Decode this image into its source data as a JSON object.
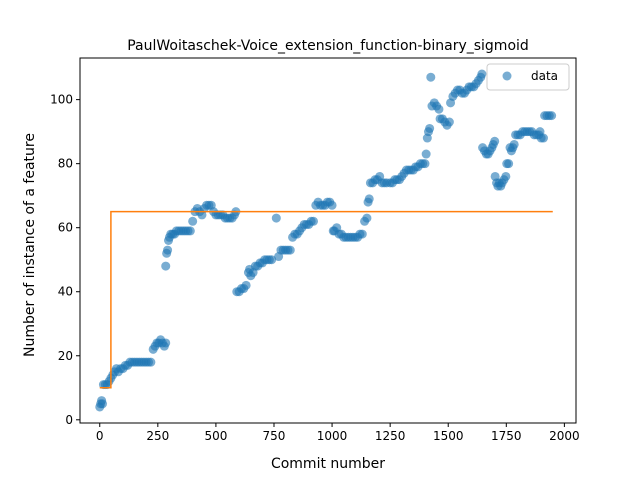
{
  "chart_data": {
    "type": "scatter",
    "title": "PaulWoitaschek-Voice_extension_function-binary_sigmoid",
    "xlabel": "Commit number",
    "ylabel": "Number of instance of a feature",
    "xlim": [
      -85,
      2050
    ],
    "ylim": [
      -1,
      113
    ],
    "xticks": [
      0,
      250,
      500,
      750,
      1000,
      1250,
      1500,
      1750,
      2000
    ],
    "yticks": [
      0,
      20,
      40,
      60,
      80,
      100
    ],
    "grid": false,
    "legend_position": "top-right",
    "colors": {
      "data": "#1f77b4",
      "fit": "#ff7f0e"
    },
    "series": [
      {
        "name": "data",
        "kind": "scatter",
        "points": [
          [
            0,
            4
          ],
          [
            4,
            5
          ],
          [
            8,
            6
          ],
          [
            12,
            5
          ],
          [
            16,
            11
          ],
          [
            24,
            11
          ],
          [
            32,
            11
          ],
          [
            40,
            12
          ],
          [
            48,
            13
          ],
          [
            56,
            14
          ],
          [
            64,
            15
          ],
          [
            72,
            16
          ],
          [
            80,
            15
          ],
          [
            90,
            16
          ],
          [
            100,
            16
          ],
          [
            110,
            17
          ],
          [
            120,
            17
          ],
          [
            130,
            18
          ],
          [
            140,
            18
          ],
          [
            150,
            18
          ],
          [
            160,
            18
          ],
          [
            170,
            18
          ],
          [
            180,
            18
          ],
          [
            190,
            18
          ],
          [
            200,
            18
          ],
          [
            210,
            18
          ],
          [
            220,
            18
          ],
          [
            230,
            22
          ],
          [
            238,
            23
          ],
          [
            246,
            24
          ],
          [
            254,
            24
          ],
          [
            262,
            25
          ],
          [
            270,
            24
          ],
          [
            278,
            23
          ],
          [
            284,
            24
          ],
          [
            284,
            48
          ],
          [
            288,
            52
          ],
          [
            292,
            53
          ],
          [
            296,
            56
          ],
          [
            300,
            57
          ],
          [
            306,
            58
          ],
          [
            314,
            58
          ],
          [
            322,
            58
          ],
          [
            330,
            59
          ],
          [
            340,
            59
          ],
          [
            350,
            59
          ],
          [
            360,
            59
          ],
          [
            370,
            59
          ],
          [
            380,
            59
          ],
          [
            390,
            59
          ],
          [
            400,
            62
          ],
          [
            410,
            65
          ],
          [
            420,
            66
          ],
          [
            430,
            65
          ],
          [
            440,
            64
          ],
          [
            450,
            66
          ],
          [
            460,
            67
          ],
          [
            470,
            67
          ],
          [
            480,
            67
          ],
          [
            490,
            65
          ],
          [
            500,
            64
          ],
          [
            510,
            64
          ],
          [
            520,
            64
          ],
          [
            530,
            64
          ],
          [
            540,
            63
          ],
          [
            550,
            63
          ],
          [
            560,
            63
          ],
          [
            570,
            63
          ],
          [
            580,
            64
          ],
          [
            586,
            65
          ],
          [
            590,
            40
          ],
          [
            600,
            40
          ],
          [
            610,
            41
          ],
          [
            620,
            41
          ],
          [
            630,
            42
          ],
          [
            640,
            46
          ],
          [
            645,
            47
          ],
          [
            650,
            45
          ],
          [
            660,
            46
          ],
          [
            670,
            48
          ],
          [
            680,
            48
          ],
          [
            690,
            49
          ],
          [
            700,
            49
          ],
          [
            710,
            50
          ],
          [
            720,
            50
          ],
          [
            730,
            50
          ],
          [
            740,
            50
          ],
          [
            760,
            63
          ],
          [
            770,
            51
          ],
          [
            780,
            53
          ],
          [
            790,
            53
          ],
          [
            800,
            53
          ],
          [
            810,
            53
          ],
          [
            820,
            53
          ],
          [
            830,
            57
          ],
          [
            840,
            58
          ],
          [
            850,
            58
          ],
          [
            860,
            59
          ],
          [
            870,
            60
          ],
          [
            880,
            61
          ],
          [
            890,
            61
          ],
          [
            900,
            61
          ],
          [
            910,
            62
          ],
          [
            920,
            62
          ],
          [
            930,
            67
          ],
          [
            940,
            68
          ],
          [
            950,
            67
          ],
          [
            960,
            67
          ],
          [
            970,
            67
          ],
          [
            980,
            68
          ],
          [
            990,
            68
          ],
          [
            1000,
            67
          ],
          [
            1005,
            59
          ],
          [
            1010,
            59
          ],
          [
            1020,
            60
          ],
          [
            1030,
            58
          ],
          [
            1040,
            58
          ],
          [
            1050,
            57
          ],
          [
            1060,
            57
          ],
          [
            1070,
            57
          ],
          [
            1080,
            57
          ],
          [
            1090,
            57
          ],
          [
            1100,
            57
          ],
          [
            1110,
            57
          ],
          [
            1120,
            58
          ],
          [
            1130,
            58
          ],
          [
            1140,
            62
          ],
          [
            1150,
            63
          ],
          [
            1155,
            68
          ],
          [
            1160,
            69
          ],
          [
            1165,
            74
          ],
          [
            1175,
            74
          ],
          [
            1185,
            75
          ],
          [
            1195,
            75
          ],
          [
            1205,
            76
          ],
          [
            1215,
            74
          ],
          [
            1225,
            74
          ],
          [
            1235,
            74
          ],
          [
            1250,
            74
          ],
          [
            1260,
            74
          ],
          [
            1270,
            75
          ],
          [
            1280,
            75
          ],
          [
            1290,
            75
          ],
          [
            1300,
            76
          ],
          [
            1310,
            77
          ],
          [
            1320,
            78
          ],
          [
            1330,
            78
          ],
          [
            1340,
            78
          ],
          [
            1350,
            78
          ],
          [
            1360,
            79
          ],
          [
            1370,
            79
          ],
          [
            1380,
            80
          ],
          [
            1390,
            80
          ],
          [
            1400,
            80
          ],
          [
            1405,
            83
          ],
          [
            1410,
            88
          ],
          [
            1415,
            90
          ],
          [
            1420,
            91
          ],
          [
            1425,
            107
          ],
          [
            1430,
            98
          ],
          [
            1440,
            99
          ],
          [
            1450,
            98
          ],
          [
            1460,
            97
          ],
          [
            1465,
            94
          ],
          [
            1475,
            94
          ],
          [
            1485,
            93
          ],
          [
            1495,
            92
          ],
          [
            1505,
            93
          ],
          [
            1510,
            99
          ],
          [
            1520,
            101
          ],
          [
            1530,
            102
          ],
          [
            1540,
            103
          ],
          [
            1550,
            103
          ],
          [
            1560,
            102
          ],
          [
            1570,
            102
          ],
          [
            1580,
            103
          ],
          [
            1590,
            104
          ],
          [
            1600,
            104
          ],
          [
            1610,
            104
          ],
          [
            1620,
            105
          ],
          [
            1630,
            106
          ],
          [
            1640,
            107
          ],
          [
            1645,
            108
          ],
          [
            1648,
            85
          ],
          [
            1656,
            84
          ],
          [
            1664,
            83
          ],
          [
            1672,
            83
          ],
          [
            1680,
            84
          ],
          [
            1688,
            85
          ],
          [
            1694,
            86
          ],
          [
            1700,
            87
          ],
          [
            1702,
            76
          ],
          [
            1708,
            74
          ],
          [
            1714,
            73
          ],
          [
            1720,
            74
          ],
          [
            1726,
            73
          ],
          [
            1732,
            74
          ],
          [
            1740,
            75
          ],
          [
            1748,
            76
          ],
          [
            1752,
            80
          ],
          [
            1760,
            80
          ],
          [
            1766,
            85
          ],
          [
            1772,
            84
          ],
          [
            1778,
            85
          ],
          [
            1784,
            86
          ],
          [
            1790,
            89
          ],
          [
            1800,
            89
          ],
          [
            1810,
            89
          ],
          [
            1820,
            90
          ],
          [
            1830,
            90
          ],
          [
            1840,
            90
          ],
          [
            1850,
            90
          ],
          [
            1860,
            90
          ],
          [
            1870,
            89
          ],
          [
            1880,
            89
          ],
          [
            1890,
            89
          ],
          [
            1895,
            90
          ],
          [
            1900,
            88
          ],
          [
            1910,
            88
          ],
          [
            1915,
            95
          ],
          [
            1925,
            95
          ],
          [
            1935,
            95
          ],
          [
            1945,
            95
          ]
        ]
      },
      {
        "name": "",
        "kind": "line",
        "points": [
          [
            0,
            10
          ],
          [
            48,
            10
          ],
          [
            48,
            65
          ],
          [
            1950,
            65
          ]
        ]
      }
    ]
  }
}
